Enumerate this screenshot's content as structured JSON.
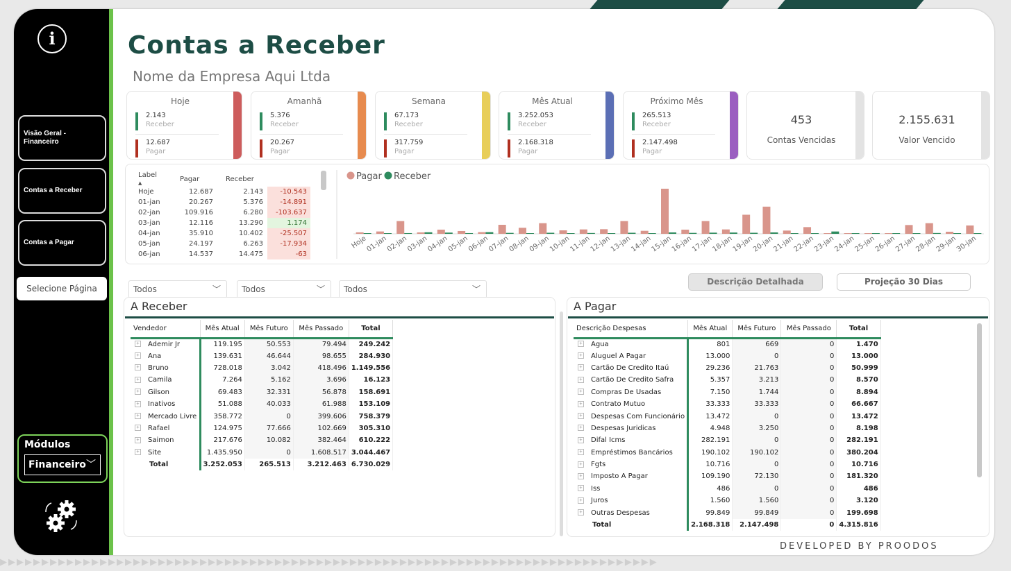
{
  "header": {
    "title": "Contas a Receber",
    "subtitle": "Nome da Empresa Aqui Ltda"
  },
  "sidebar": {
    "nav": [
      "Visão Geral - Financeiro",
      "Contas a Receber",
      "Contas a Pagar"
    ],
    "select_page": "Selecione Página",
    "modules_label": "Módulos",
    "modules_value": "Financeiro",
    "info_icon": "i",
    "settings_icon": "settings-gear-icon"
  },
  "cards": [
    {
      "title": "Hoje",
      "receber": "2.143",
      "pagar": "12.687",
      "color": "#cd5c5c"
    },
    {
      "title": "Amanhã",
      "receber": "5.376",
      "pagar": "20.267",
      "color": "#e78b4f"
    },
    {
      "title": "Semana",
      "receber": "67.173",
      "pagar": "317.759",
      "color": "#e8ce5a"
    },
    {
      "title": "Mês Atual",
      "receber": "3.252.053",
      "pagar": "2.168.318",
      "color": "#5b6fb5"
    },
    {
      "title": "Próximo Mês",
      "receber": "265.513",
      "pagar": "2.147.498",
      "color": "#9b5fc0"
    }
  ],
  "card_labels": {
    "receber": "Receber",
    "pagar": "Pagar"
  },
  "kpis": [
    {
      "value": "453",
      "label": "Contas Vencidas"
    },
    {
      "value": "2.155.631",
      "label": "Valor Vencido"
    }
  ],
  "mini_table": {
    "headers": [
      "Label",
      "Pagar",
      "Receber"
    ],
    "rows": [
      [
        "Hoje",
        "12.687",
        "2.143",
        "-10.543"
      ],
      [
        "01-jan",
        "20.267",
        "5.376",
        "-14.891"
      ],
      [
        "02-jan",
        "109.916",
        "6.280",
        "-103.637"
      ],
      [
        "03-jan",
        "12.116",
        "13.290",
        "1.174"
      ],
      [
        "04-jan",
        "35.910",
        "10.402",
        "-25.507"
      ],
      [
        "05-jan",
        "24.197",
        "6.263",
        "-17.934"
      ],
      [
        "06-jan",
        "14.537",
        "14.475",
        "-63"
      ]
    ]
  },
  "chart_data": {
    "type": "bar",
    "legend": [
      "Pagar",
      "Receber"
    ],
    "colors": {
      "Pagar": "#d9958b",
      "Receber": "#2e8b5e"
    },
    "categories": [
      "Hoje",
      "01-jan",
      "02-jan",
      "03-jan",
      "04-jan",
      "05-jan",
      "06-jan",
      "07-jan",
      "08-jan",
      "09-jan",
      "10-jan",
      "11-jan",
      "12-jan",
      "13-jan",
      "14-jan",
      "15-jan",
      "16-jan",
      "17-jan",
      "18-jan",
      "19-jan",
      "20-jan",
      "21-jan",
      "22-jan",
      "23-jan",
      "24-jan",
      "25-jan",
      "26-jan",
      "27-jan",
      "28-jan",
      "29-jan",
      "30-jan"
    ],
    "series": [
      {
        "name": "Pagar",
        "values": [
          12687,
          20267,
          109916,
          12116,
          35910,
          24197,
          14537,
          78000,
          52000,
          92000,
          30000,
          38000,
          40000,
          110000,
          26000,
          390000,
          36000,
          110000,
          38000,
          165000,
          235000,
          28000,
          58000,
          6000,
          5000,
          4000,
          4000,
          76000,
          92000,
          18000,
          72000
        ]
      },
      {
        "name": "Receber",
        "values": [
          2143,
          5376,
          6280,
          13290,
          10402,
          6263,
          14475,
          8000,
          5000,
          9000,
          6000,
          7000,
          6000,
          9000,
          5000,
          12000,
          8000,
          10000,
          11000,
          9000,
          12000,
          5000,
          6000,
          20000,
          4000,
          3000,
          3000,
          5000,
          7000,
          4000,
          6000
        ]
      }
    ],
    "ylim": [
      0,
      420000
    ]
  },
  "filters": [
    "Todos",
    "Todos",
    "Todos"
  ],
  "actions": [
    "Descrição Detalhada",
    "Projeção 30 Dias"
  ],
  "receber": {
    "title": "A Receber",
    "headers": [
      "Vendedor",
      "Mês Atual",
      "Mês Futuro",
      "Mês Passado",
      "Total"
    ],
    "rows": [
      [
        "Ademir Jr",
        "119.195",
        "50.553",
        "79.494",
        "249.242"
      ],
      [
        "Ana",
        "139.631",
        "46.644",
        "98.655",
        "284.930"
      ],
      [
        "Bruno",
        "728.018",
        "3.042",
        "418.496",
        "1.149.556"
      ],
      [
        "Camila",
        "7.264",
        "5.162",
        "3.696",
        "16.123"
      ],
      [
        "Gilson",
        "69.483",
        "32.331",
        "56.878",
        "158.691"
      ],
      [
        "Inativos",
        "51.088",
        "40.033",
        "61.988",
        "153.109"
      ],
      [
        "Mercado Livre",
        "358.772",
        "0",
        "399.606",
        "758.379"
      ],
      [
        "Rafael",
        "124.975",
        "77.666",
        "102.669",
        "305.310"
      ],
      [
        "Saimon",
        "217.676",
        "10.082",
        "382.464",
        "610.222"
      ],
      [
        "Site",
        "1.435.950",
        "0",
        "1.608.517",
        "3.044.467"
      ]
    ],
    "total": [
      "Total",
      "3.252.053",
      "265.513",
      "3.212.463",
      "6.730.029"
    ]
  },
  "pagar": {
    "title": "A Pagar",
    "headers": [
      "Descrição Despesas",
      "Mês Atual",
      "Mês Futuro",
      "Mês Passado",
      "Total"
    ],
    "rows": [
      [
        "Agua",
        "801",
        "669",
        "0",
        "1.470"
      ],
      [
        "Aluguel A Pagar",
        "13.000",
        "0",
        "0",
        "13.000"
      ],
      [
        "Cartão De Credito Itaú",
        "29.236",
        "21.763",
        "0",
        "50.999"
      ],
      [
        "Cartão De Credito Safra",
        "5.357",
        "3.213",
        "0",
        "8.570"
      ],
      [
        "Compras De Usadas",
        "7.150",
        "1.744",
        "0",
        "8.894"
      ],
      [
        "Contrato Mutuo",
        "33.333",
        "33.333",
        "0",
        "66.667"
      ],
      [
        "Despesas Com Funcionário",
        "13.472",
        "0",
        "0",
        "13.472"
      ],
      [
        "Despesas Juridicas",
        "4.948",
        "3.250",
        "0",
        "8.198"
      ],
      [
        "Difal Icms",
        "282.191",
        "0",
        "0",
        "282.191"
      ],
      [
        "Empréstimos Bancários",
        "190.102",
        "190.102",
        "0",
        "380.204"
      ],
      [
        "Fgts",
        "10.716",
        "0",
        "0",
        "10.716"
      ],
      [
        "Imposto A Pagar",
        "109.190",
        "72.130",
        "0",
        "181.320"
      ],
      [
        "Iss",
        "486",
        "0",
        "0",
        "486"
      ],
      [
        "Juros",
        "1.560",
        "1.560",
        "0",
        "3.120"
      ],
      [
        "Outras Despesas",
        "99.849",
        "99.849",
        "0",
        "199.698"
      ]
    ],
    "total": [
      "Total",
      "2.168.318",
      "2.147.498",
      "0",
      "4.315.816"
    ]
  },
  "footer": "DEVELOPED BY PROODOS"
}
